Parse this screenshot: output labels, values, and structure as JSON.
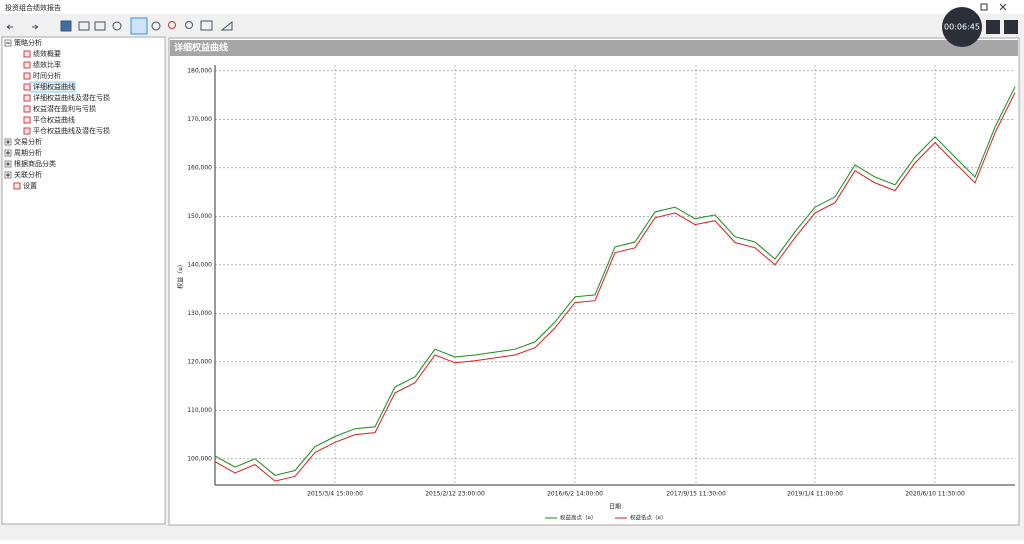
{
  "window": {
    "title": "投资组合绩效报告"
  },
  "recording": {
    "time": "00:06:45"
  },
  "tree": {
    "nodes": [
      {
        "label": "策略分析",
        "children": [
          "绩效概要",
          "绩效比率",
          "时间分析",
          "详细权益曲线",
          "详细权益曲线及潜在亏损",
          "权益潜在盈利与亏损",
          "平仓权益曲线",
          "平仓权益曲线及潜在亏损"
        ]
      },
      {
        "label": "交易分析"
      },
      {
        "label": "周期分析"
      },
      {
        "label": "根据商品分类"
      },
      {
        "label": "关联分析"
      },
      {
        "label": "设置"
      }
    ]
  },
  "panel": {
    "title": "详细权益曲线"
  },
  "chart_data": {
    "type": "line",
    "xlabel": "日期",
    "ylabel": "权益（¤）",
    "grid": true,
    "x": [
      0,
      20,
      40,
      60,
      80,
      100,
      120,
      140,
      160,
      180,
      200,
      220,
      240,
      260,
      280,
      300,
      320,
      340,
      360,
      380,
      400,
      420,
      440,
      460,
      480,
      500,
      520,
      540,
      560,
      580,
      600,
      620,
      640,
      660,
      680,
      700,
      720,
      740,
      760,
      780,
      800
    ],
    "xlim": [
      0,
      800
    ],
    "xticks": [
      {
        "value": 120,
        "label": "2015/3/4 15:00:00"
      },
      {
        "value": 240,
        "label": "2015/2/12 23:00:00"
      },
      {
        "value": 360,
        "label": "2016/6/2 14:00:00"
      },
      {
        "value": 481,
        "label": "2017/9/15 11:30:00"
      },
      {
        "value": 600,
        "label": "2019/1/4 11:00:00"
      },
      {
        "value": 720,
        "label": "2020/6/10 11:30:00"
      }
    ],
    "ylim": [
      94600,
      181200
    ],
    "yticks": [
      {
        "value": 100000,
        "label": "100,000"
      },
      {
        "value": 110000,
        "label": "110,000"
      },
      {
        "value": 120000,
        "label": "120,000"
      },
      {
        "value": 130000,
        "label": "130,000"
      },
      {
        "value": 140000,
        "label": "140,000"
      },
      {
        "value": 150000,
        "label": "150,000"
      },
      {
        "value": 160000,
        "label": "160,000"
      },
      {
        "value": 170000,
        "label": "170,000"
      },
      {
        "value": 180000,
        "label": "180,000"
      }
    ],
    "series": [
      {
        "name": "权益高点（¤）",
        "color": "#1a8a1a",
        "values": [
          100600,
          98300,
          100000,
          96600,
          97600,
          102500,
          104600,
          106200,
          106600,
          114800,
          116900,
          122600,
          121000,
          121400,
          122000,
          122600,
          124100,
          128200,
          133400,
          133800,
          143700,
          144700,
          150900,
          151900,
          149500,
          150300,
          145800,
          144700,
          141200,
          146800,
          151900,
          154000,
          160600,
          158100,
          156500,
          162200,
          166400,
          162200,
          158100,
          168400,
          176700
        ]
      },
      {
        "name": "权益低点（¤）",
        "color": "#d42020",
        "values": [
          99400,
          97100,
          98800,
          95400,
          96400,
          101300,
          103400,
          105000,
          105400,
          113600,
          115700,
          121400,
          119800,
          120200,
          120800,
          121400,
          122900,
          127000,
          132200,
          132600,
          142500,
          143500,
          149700,
          150700,
          148300,
          149100,
          144600,
          143500,
          140000,
          145600,
          150700,
          152800,
          159400,
          156900,
          155300,
          161000,
          165200,
          161000,
          156900,
          167200,
          175500
        ]
      }
    ]
  }
}
